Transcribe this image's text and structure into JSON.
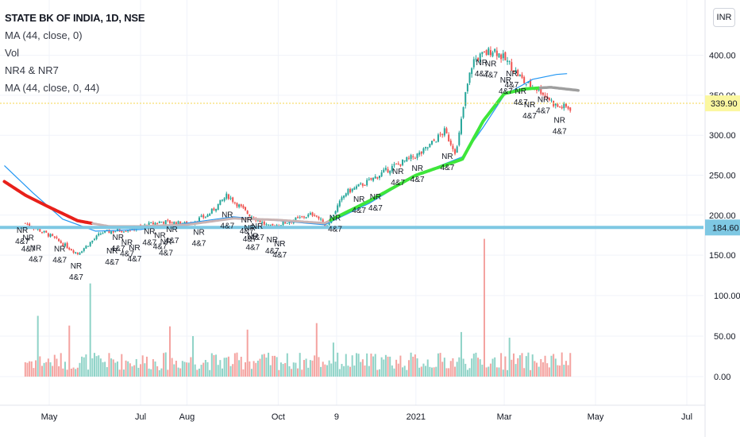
{
  "header": {
    "title": "STATE BK OF INDIA, 1D, NSE",
    "indicators": [
      "MA (44, close, 0)",
      "Vol",
      "NR4 & NR7",
      "MA (44, close, 0, 44)"
    ],
    "currency": "INR"
  },
  "colors": {
    "up": "#26a69a",
    "down": "#ef5350",
    "ma_blue": "#2196f3",
    "ma_red": "#e8201a",
    "ma_green": "#3ee63a",
    "ma_gray": "#9e9e9e",
    "support_line": "#7ec8e3",
    "price_line": "#f5d64d",
    "price_badge": "#fbf7a0"
  },
  "chart_data": {
    "type": "candlestick",
    "yaxis": {
      "ticks": [
        150,
        200,
        250,
        300,
        350,
        400
      ],
      "tick_labels": [
        "150.00",
        "200.00",
        "250.00",
        "300.00",
        "350.00",
        "400.00"
      ],
      "ylim": [
        124,
        452
      ]
    },
    "volume_axis": {
      "tick_labels": [
        "0.00",
        "50.00",
        "100.00"
      ]
    },
    "xaxis": {
      "labels": [
        "May",
        "Jul",
        "Aug",
        "Oct",
        "9",
        "2021",
        "Mar",
        "May",
        "Jul"
      ]
    },
    "last_price": "339.90",
    "level_line": "184.60",
    "nr_label": {
      "top": "NR",
      "bottom": "4&7"
    },
    "price_anchors": [
      [
        "Apr-15",
        190
      ],
      [
        "May-01",
        175
      ],
      [
        "May-20",
        152
      ],
      [
        "Jun-05",
        178
      ],
      [
        "Jun-25",
        183
      ],
      [
        "Jul-15",
        192
      ],
      [
        "Aug-01",
        189
      ],
      [
        "Aug-15",
        200
      ],
      [
        "Aug-28",
        225
      ],
      [
        "Sep-10",
        203
      ],
      [
        "Sep-25",
        185
      ],
      [
        "Oct-10",
        193
      ],
      [
        "Oct-25",
        202
      ],
      [
        "Nov-02",
        186
      ],
      [
        "Nov-15",
        228
      ],
      [
        "Dec-01",
        243
      ],
      [
        "Dec-15",
        259
      ],
      [
        "Jan-05",
        278
      ],
      [
        "Jan-20",
        305
      ],
      [
        "Jan-28",
        278
      ],
      [
        "Feb-03",
        350
      ],
      [
        "Feb-08",
        393
      ],
      [
        "Feb-22",
        408
      ],
      [
        "Mar-05",
        388
      ],
      [
        "Mar-15",
        365
      ],
      [
        "Mar-25",
        357
      ],
      [
        "Apr-05",
        336
      ],
      [
        "Apr-15",
        334
      ]
    ],
    "ma_blue": [
      [
        "Apr-01",
        262
      ],
      [
        "Apr-20",
        228
      ],
      [
        "May-10",
        195
      ],
      [
        "Jun-01",
        180
      ],
      [
        "Jul-01",
        182
      ],
      [
        "Aug-01",
        190
      ],
      [
        "Sep-01",
        198
      ],
      [
        "Oct-01",
        193
      ],
      [
        "Nov-01",
        188
      ],
      [
        "Dec-01",
        215
      ],
      [
        "Jan-01",
        250
      ],
      [
        "Feb-01",
        273
      ],
      [
        "Feb-15",
        310
      ],
      [
        "Mar-01",
        350
      ],
      [
        "Mar-20",
        370
      ],
      [
        "Apr-05",
        376
      ],
      [
        "Apr-12",
        377
      ]
    ],
    "ma_offset": [
      [
        "Apr-01",
        242
      ],
      [
        "Apr-15",
        225
      ],
      [
        "May-01",
        210
      ],
      [
        "May-20",
        193
      ],
      [
        "Jun-10",
        186
      ],
      [
        "Jul-01",
        186
      ],
      [
        "Aug-01",
        188
      ],
      [
        "Sep-01",
        196
      ],
      [
        "Oct-01",
        194
      ],
      [
        "Nov-01",
        190
      ],
      [
        "Dec-01",
        218
      ],
      [
        "Jan-01",
        250
      ],
      [
        "Feb-01",
        270
      ],
      [
        "Feb-15",
        318
      ],
      [
        "Mar-01",
        352
      ],
      [
        "Mar-15",
        358
      ],
      [
        "Apr-01",
        360
      ],
      [
        "Apr-20",
        356
      ]
    ],
    "nr_signals": [
      "Apr-13",
      "Apr-17",
      "Apr-22",
      "May-08",
      "May-19",
      "Jun-12",
      "Jun-16",
      "Jun-22",
      "Jun-27",
      "Jul-07",
      "Jul-14",
      "Jul-18",
      "Jul-22",
      "Aug-09",
      "Aug-28",
      "Sep-10",
      "Sep-12",
      "Sep-14",
      "Sep-17",
      "Sep-27",
      "Oct-02",
      "Nov-08",
      "Nov-24",
      "Dec-05",
      "Dec-20",
      "Jan-02",
      "Jan-22",
      "Feb-14",
      "Feb-20",
      "Mar-02",
      "Mar-06",
      "Mar-12",
      "Mar-18",
      "Mar-27",
      "Apr-07"
    ],
    "volume_spikes": [
      [
        "Apr-24",
        75
      ],
      [
        "May-15",
        63
      ],
      [
        "May-28",
        115
      ],
      [
        "Jul-20",
        62
      ],
      [
        "Aug-05",
        50
      ],
      [
        "Sep-10",
        58
      ],
      [
        "Oct-27",
        66
      ],
      [
        "Nov-07",
        42
      ],
      [
        "Feb-01",
        55
      ],
      [
        "Feb-16",
        170
      ],
      [
        "Mar-04",
        48
      ]
    ]
  }
}
